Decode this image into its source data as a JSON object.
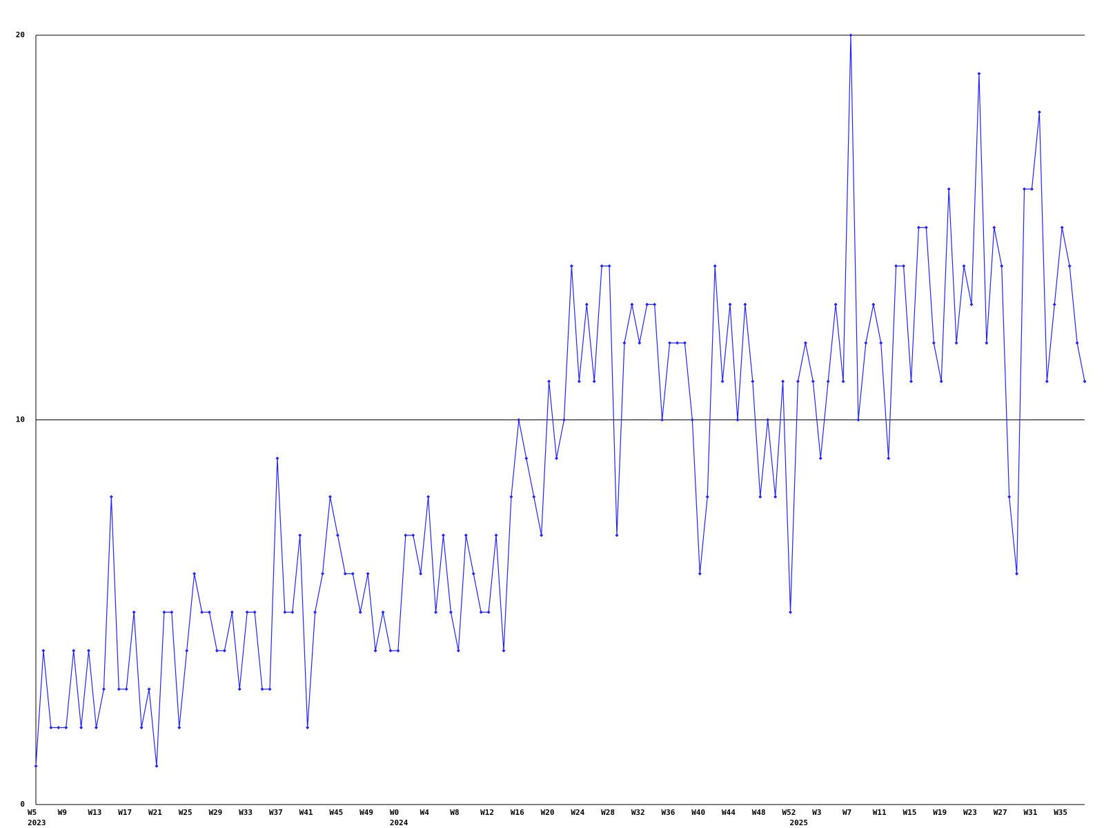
{
  "chart_data": {
    "type": "line",
    "color": "#2222ff",
    "grid": true,
    "markers": true,
    "ylim": [
      0,
      20
    ],
    "yticks": [
      0,
      10,
      20
    ],
    "categories": [
      "W5",
      null,
      null,
      null,
      "W9",
      null,
      null,
      null,
      "W13",
      null,
      null,
      null,
      "W17",
      null,
      null,
      null,
      "W21",
      null,
      null,
      null,
      "W25",
      null,
      null,
      null,
      "W29",
      null,
      null,
      null,
      "W33",
      null,
      null,
      null,
      "W37",
      null,
      null,
      null,
      "W41",
      null,
      null,
      null,
      "W45",
      null,
      null,
      null,
      "W49",
      null,
      null,
      null,
      "W0",
      null,
      null,
      null,
      "W4",
      null,
      null,
      null,
      "W8",
      null,
      null,
      null,
      "W12",
      null,
      null,
      null,
      "W16",
      null,
      null,
      null,
      "W20",
      null,
      null,
      null,
      "W24",
      null,
      null,
      null,
      "W28",
      null,
      null,
      null,
      "W32",
      null,
      null,
      null,
      "W36",
      null,
      null,
      null,
      "W40",
      null,
      null,
      null,
      "W44",
      null,
      null,
      null,
      "W48",
      null,
      null,
      null,
      "W52",
      null,
      null,
      null,
      "W3",
      null,
      null,
      null,
      "W7",
      null,
      null,
      null,
      "W11",
      null,
      null,
      null,
      "W15",
      null,
      null,
      null,
      "W19",
      null,
      null,
      null,
      "W23",
      null,
      null,
      null,
      "W27",
      null,
      null,
      null,
      "W31",
      null,
      null,
      null,
      "W35",
      null,
      null,
      null
    ],
    "year_labels": [
      {
        "index": 0,
        "label": "2023"
      },
      {
        "index": 48,
        "label": "2024"
      },
      {
        "index": 101,
        "label": "2025"
      }
    ],
    "values": [
      1,
      4,
      2,
      2,
      2,
      4,
      2,
      4,
      2,
      3,
      8,
      3,
      3,
      5,
      2,
      3,
      1,
      5,
      5,
      2,
      4,
      6,
      5,
      5,
      4,
      4,
      5,
      3,
      5,
      5,
      3,
      3,
      9,
      5,
      5,
      7,
      2,
      5,
      6,
      8,
      7,
      6,
      6,
      5,
      6,
      4,
      5,
      4,
      4,
      7,
      7,
      6,
      8,
      5,
      7,
      5,
      4,
      7,
      6,
      5,
      5,
      7,
      4,
      8,
      10,
      9,
      8,
      7,
      11,
      9,
      10,
      14,
      11,
      13,
      11,
      14,
      14,
      7,
      12,
      13,
      12,
      13,
      13,
      10,
      12,
      12,
      12,
      10,
      6,
      8,
      14,
      11,
      13,
      10,
      13,
      11,
      8,
      10,
      8,
      11,
      5,
      11,
      12,
      11,
      9,
      11,
      13,
      11,
      20,
      10,
      12,
      13,
      12,
      9,
      14,
      14,
      11,
      15,
      15,
      12,
      11,
      16,
      12,
      14,
      13,
      19,
      12,
      15,
      14,
      8,
      6,
      16,
      16,
      18,
      11,
      13,
      15,
      14,
      12,
      11
    ]
  }
}
